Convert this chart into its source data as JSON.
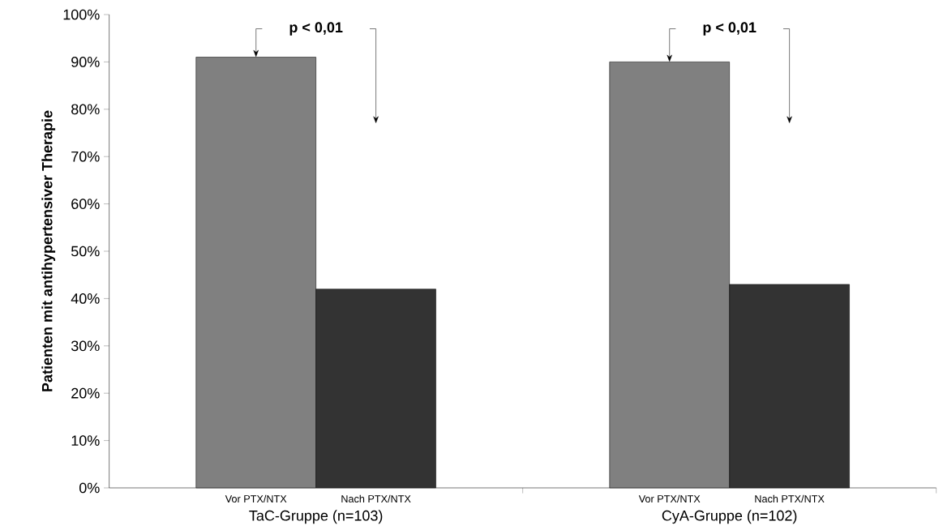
{
  "chart_data": {
    "type": "bar",
    "ylabel": "**Patienten mit antihypertensiver Therapie**",
    "categories": [
      "TaC-Gruppe (n=103)",
      "CyA-Gruppe (n=102)"
    ],
    "series": [
      {
        "name": "Vor PTX/NTX",
        "color": "#808080",
        "values": [
          91,
          90
        ]
      },
      {
        "name": "Nach PTX/NTX",
        "color": "#333333",
        "values": [
          42,
          43
        ]
      }
    ],
    "ylim": [
      0,
      100
    ],
    "yticks": [
      {
        "value": 0,
        "label": "0%"
      },
      {
        "value": 10,
        "label": "10%"
      },
      {
        "value": 20,
        "label": "20%"
      },
      {
        "value": 30,
        "label": "30%"
      },
      {
        "value": 40,
        "label": "40%"
      },
      {
        "value": 50,
        "label": "50%"
      },
      {
        "value": 60,
        "label": "60%"
      },
      {
        "value": 70,
        "label": "70%"
      },
      {
        "value": 80,
        "label": "80%"
      },
      {
        "value": 90,
        "label": "90%"
      },
      {
        "value": 100,
        "label": "100%"
      }
    ],
    "annotations": [
      "**p < 0,01**",
      "**p < 0,01**"
    ],
    "grid": false,
    "legend": false
  }
}
